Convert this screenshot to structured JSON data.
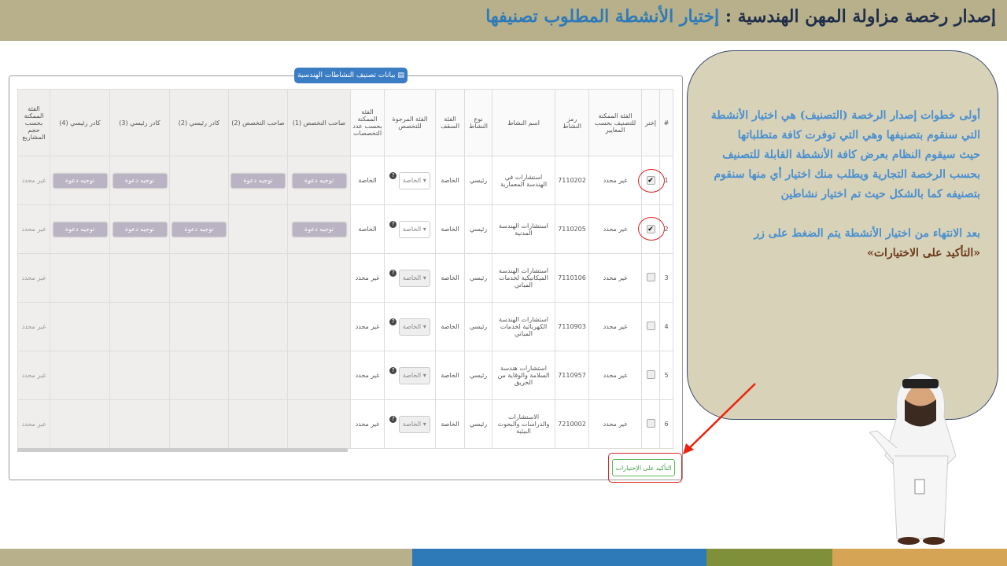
{
  "header": {
    "title": "إصدار رخصة مزاولة المهن الهندسية : ",
    "subtitle": "إختيار الأنشطة المطلوب تصنيفها"
  },
  "footer_colors": [
    "#b7b08a",
    "#2e7ab8",
    "#7f8f3a",
    "#d6a455"
  ],
  "panel": {
    "legend": "بيانات تصنيف النشاطات الهندسية",
    "legend_icon": "book-icon"
  },
  "table": {
    "headers": [
      "#",
      "إختر",
      "الفئة الممكنة للتصنيف بحسب المعايير",
      "رمز النشاط",
      "اسم النشاط",
      "نوع النشاط",
      "الفئة السقف",
      "الفئة المرجوة للتخصص",
      "الفئة الممكنة بحسب عدد التخصصات",
      "صاحب التخصص (1)",
      "صاحب التخصص (2)",
      "كادر رئيسي (2)",
      "كادر رئيسي (3)",
      "كادر رئيسي (4)",
      "الفئة الممكنة بحسب حجم المشاريع"
    ],
    "invite_label": "توجيه دعوة",
    "rows": [
      {
        "num": "1",
        "checked": true,
        "possible": "غير محدد",
        "code": "7110202",
        "name": "استشارات في الهندسة المعمارية",
        "type": "رئيسي",
        "ceiling": "الخاصة",
        "desired": "الخاصة",
        "by_count": "الخاصة",
        "invites": [
          true,
          true,
          false,
          true,
          true
        ],
        "by_size": "غير محدد"
      },
      {
        "num": "2",
        "checked": true,
        "possible": "غير محدد",
        "code": "7110205",
        "name": "استشارات الهندسة المدنية",
        "type": "رئيسي",
        "ceiling": "الخاصة",
        "desired": "الخاصة",
        "by_count": "الخاصة",
        "invites": [
          true,
          false,
          true,
          true,
          true
        ],
        "by_size": "غير محدد"
      },
      {
        "num": "3",
        "checked": false,
        "possible": "غير محدد",
        "code": "7110106",
        "name": "استشارات الهندسة الميكانيكية لخدمات المباني",
        "type": "رئيسي",
        "ceiling": "الخاصة",
        "desired": "الخاصة",
        "by_count": "غير محدد",
        "invites": [
          false,
          false,
          false,
          false,
          false
        ],
        "by_size": "غير محدد"
      },
      {
        "num": "4",
        "checked": false,
        "possible": "غير محدد",
        "code": "7110903",
        "name": "استشارات الهندسة الكهربائية لخدمات المباني",
        "type": "رئيسي",
        "ceiling": "الخاصة",
        "desired": "الخاصة",
        "by_count": "غير محدد",
        "invites": [
          false,
          false,
          false,
          false,
          false
        ],
        "by_size": "غير محدد"
      },
      {
        "num": "5",
        "checked": false,
        "possible": "غير محدد",
        "code": "7110957",
        "name": "استشارات هندسة السلامة والوقاية من الحريق",
        "type": "رئيسي",
        "ceiling": "الخاصة",
        "desired": "الخاصة",
        "by_count": "غير محدد",
        "invites": [
          false,
          false,
          false,
          false,
          false
        ],
        "by_size": "غير محدد"
      },
      {
        "num": "6",
        "checked": false,
        "possible": "غير محدد",
        "code": "7210002",
        "name": "الاستشارات والدراسات والبحوث البيئية",
        "type": "رئيسي",
        "ceiling": "الخاصة",
        "desired": "الخاصة",
        "by_count": "غير محدد",
        "invites": [
          false,
          false,
          false,
          false,
          false
        ],
        "by_size": "غير محدد"
      }
    ]
  },
  "confirm_label": "التأكيد على الإختيارات",
  "bubble": {
    "p1": "أولى خطوات إصدار الرخصة (التصنيف) هي اختيار الأنشطة التي سنقوم بتصنيفها وهي التي توفرت كافة متطلباتها",
    "p2": "حيث سيقوم النظام بعرض كافة الأنشطة القابلة للتصنيف بحسب الرخصة التجارية ويطلب منك اختيار أي منها سنقوم بتصنيفه كما بالشكل حيث تم اختيار نشاطين",
    "p3": "بعد الانتهاء من اختيار الأنشطة يتم الضغط على زر",
    "p4": "«التأكيد على الاختيارات»"
  }
}
